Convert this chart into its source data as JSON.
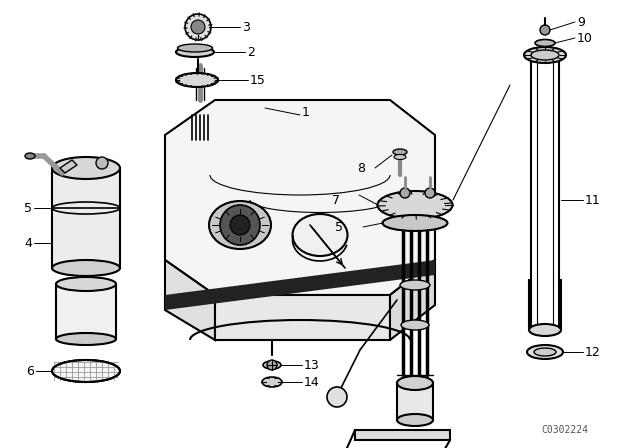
{
  "bg_color": "#ffffff",
  "line_color": "#000000",
  "watermark": "C0302224",
  "figsize": [
    6.4,
    4.48
  ],
  "dpi": 100
}
